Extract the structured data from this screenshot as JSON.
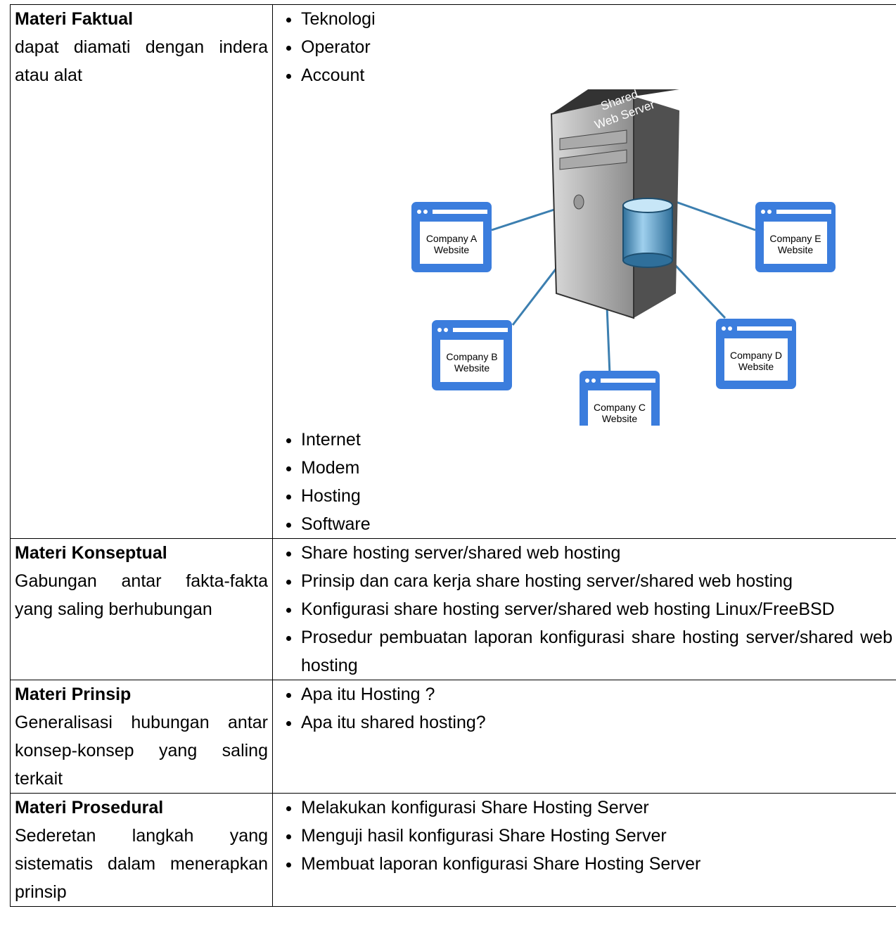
{
  "table": {
    "rows": [
      {
        "label": "Materi Faktual",
        "description": "dapat diamati dengan indera atau alat",
        "items": [
          "Teknologi",
          "Operator",
          "Account"
        ],
        "items_after": [
          "Internet",
          "Modem",
          "Hosting",
          "Software"
        ]
      },
      {
        "label": "Materi Konseptual",
        "description": "Gabungan antar fakta-fakta yang saling berhubungan",
        "items": [
          "Share hosting server/shared web hosting",
          "Prinsip dan cara kerja share hosting server/shared web hosting",
          "Konfigurasi share hosting server/shared web hosting Linux/FreeBSD",
          "Prosedur pembuatan laporan konfigurasi share hosting server/shared web hosting"
        ]
      },
      {
        "label": "Materi Prinsip",
        "description": "Generalisasi hubungan antar konsep-konsep yang saling terkait",
        "items": [
          "Apa itu Hosting ?",
          "Apa itu shared hosting?"
        ]
      },
      {
        "label": "Materi Prosedural",
        "description": "Sederetan langkah yang sistematis dalam menerapkan prinsip",
        "items": [
          "Melakukan konfigurasi Share Hosting Server",
          "Menguji hasil konfigurasi Share Hosting Server",
          "Membuat laporan konfigurasi Share Hosting Server"
        ]
      }
    ]
  },
  "diagram": {
    "server": [
      "Shared",
      "Web Server"
    ],
    "nodes": [
      {
        "lines": [
          "Company A",
          "Website"
        ]
      },
      {
        "lines": [
          "Company B",
          "Website"
        ]
      },
      {
        "lines": [
          "Company C",
          "Website"
        ]
      },
      {
        "lines": [
          "Company D",
          "Website"
        ]
      },
      {
        "lines": [
          "Company E",
          "Website"
        ]
      }
    ]
  }
}
